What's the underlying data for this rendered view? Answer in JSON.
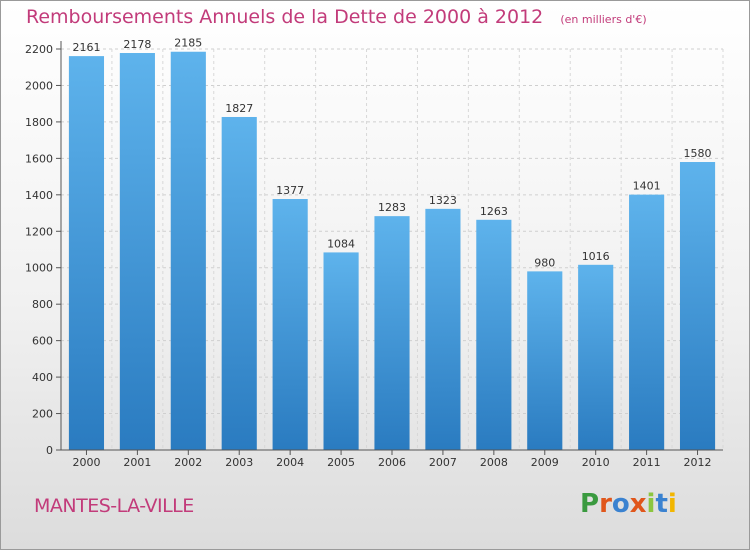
{
  "header": {
    "title": "Remboursements Annuels de la Dette de 2000 à 2012",
    "subtitle": "(en milliers d'€)"
  },
  "footer": {
    "city": "MANTES-LA-VILLE",
    "logo": "Proxiti"
  },
  "colors": {
    "accent": "#c23b7a",
    "bar_top": "#5eb3ec",
    "bar_bottom": "#2a7bc0",
    "logo_letters": [
      "#3a9a3f",
      "#e0561b",
      "#3a82d0",
      "#e0561b",
      "#8cc63f",
      "#3a82d0",
      "#f2b600"
    ]
  },
  "chart_data": {
    "type": "bar",
    "title": "Remboursements Annuels de la Dette de 2000 à 2012",
    "subtitle": "(en milliers d'€)",
    "categories": [
      "2000",
      "2001",
      "2002",
      "2003",
      "2004",
      "2005",
      "2006",
      "2007",
      "2008",
      "2009",
      "2010",
      "2011",
      "2012"
    ],
    "values": [
      2161,
      2178,
      2185,
      1827,
      1377,
      1084,
      1283,
      1323,
      1263,
      980,
      1016,
      1401,
      1580
    ],
    "ylim": [
      0,
      2200
    ],
    "yticks": [
      0,
      200,
      400,
      600,
      800,
      1000,
      1200,
      1400,
      1600,
      1800,
      2000,
      2200
    ],
    "grid": true,
    "xlabel": "",
    "ylabel": ""
  }
}
